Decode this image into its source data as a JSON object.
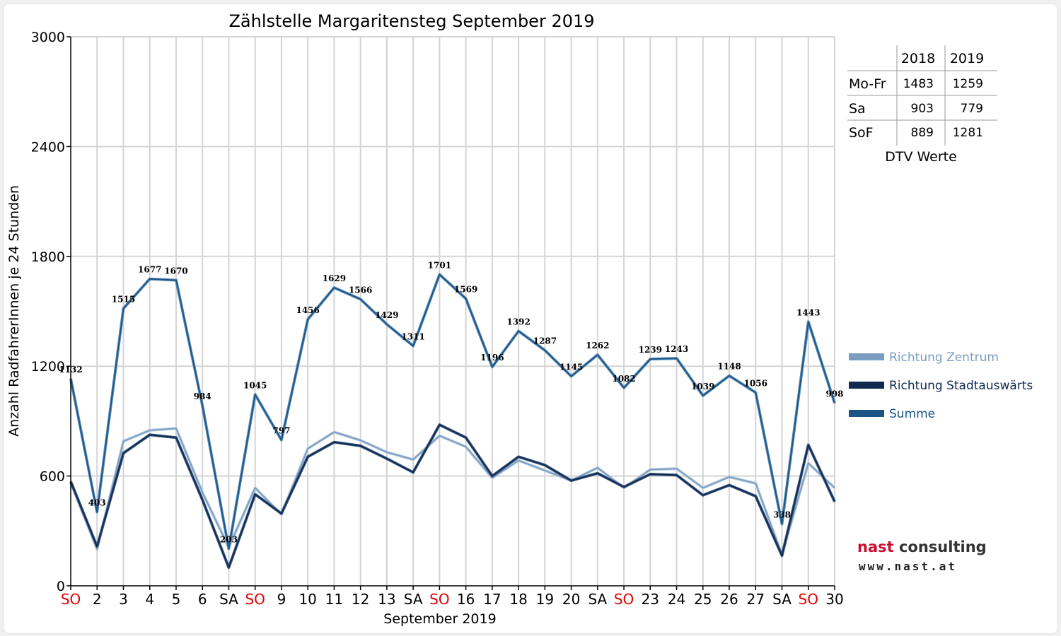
{
  "chart_data": {
    "type": "line",
    "title": "Zählstelle Margaritensteg September 2019",
    "xlabel": "September 2019",
    "ylabel": "Anzahl RadfahrerInnen je 24 Stunden",
    "ylim": [
      0,
      3000
    ],
    "yticks": [
      "0",
      "600",
      "1200",
      "1800",
      "2400",
      "3000"
    ],
    "grid": true,
    "legend_position": "right",
    "categories": [
      "SO",
      "2",
      "3",
      "4",
      "5",
      "6",
      "SA",
      "SO",
      "9",
      "10",
      "11",
      "12",
      "13",
      "SA",
      "SO",
      "16",
      "17",
      "18",
      "19",
      "20",
      "SA",
      "SO",
      "23",
      "24",
      "25",
      "26",
      "27",
      "SA",
      "SO",
      "30"
    ],
    "red_categories": [
      0,
      7,
      14,
      21,
      28
    ],
    "series": [
      {
        "name": "Richtung Zentrum",
        "color": "#7a9cc0",
        "values": [
          565,
          200,
          790,
          850,
          860,
          510,
          210,
          535,
          390,
          750,
          840,
          795,
          730,
          690,
          820,
          760,
          590,
          685,
          630,
          575,
          645,
          535,
          635,
          640,
          535,
          595,
          560,
          170,
          670,
          535
        ]
      },
      {
        "name": "Richtung Stadtauswärts",
        "color": "#10294f",
        "values": [
          570,
          215,
          725,
          825,
          810,
          470,
          100,
          500,
          395,
          705,
          785,
          765,
          695,
          620,
          880,
          810,
          600,
          705,
          660,
          575,
          615,
          540,
          610,
          605,
          495,
          550,
          490,
          165,
          770,
          460
        ]
      },
      {
        "name": "Summe",
        "color": "#1a5586",
        "values": [
          1132,
          403,
          1515,
          1677,
          1670,
          984,
          203,
          1045,
          797,
          1456,
          1629,
          1566,
          1429,
          1311,
          1701,
          1569,
          1196,
          1392,
          1287,
          1145,
          1262,
          1082,
          1239,
          1243,
          1039,
          1148,
          1056,
          338,
          1443,
          998
        ]
      }
    ],
    "data_labels": [
      "1132",
      "403",
      "1515",
      "1677",
      "1670",
      "984",
      "203",
      "1045",
      "797",
      "1456",
      "1629",
      "1566",
      "1429",
      "1311",
      "1701",
      "1569",
      "1196",
      "1392",
      "1287",
      "1145",
      "1262",
      "1082",
      "1239",
      "1243",
      "1039",
      "1148",
      "1056",
      "338",
      "1443",
      "998"
    ]
  },
  "dtv_table": {
    "headers": [
      "",
      "2018",
      "2019"
    ],
    "rows": [
      {
        "label": "Mo-Fr",
        "v2018": "1483",
        "v2019": "1259"
      },
      {
        "label": "Sa",
        "v2018": "903",
        "v2019": "779"
      },
      {
        "label": "SoF",
        "v2018": "889",
        "v2019": "1281"
      }
    ],
    "caption": "DTV Werte"
  },
  "logo": {
    "brand_part1": "nast",
    "brand_part2": "consulting",
    "url": "www.nast.at"
  }
}
